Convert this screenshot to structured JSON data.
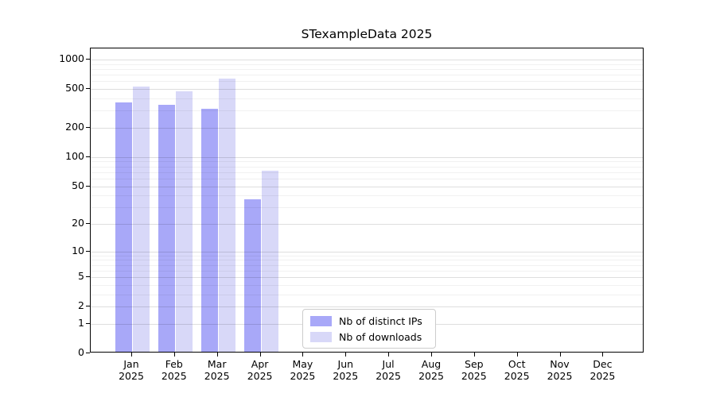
{
  "title": "STexampleData 2025",
  "chart_data": {
    "type": "bar",
    "title": "STexampleData 2025",
    "categories": [
      "Jan",
      "Feb",
      "Mar",
      "Apr",
      "May",
      "Jun",
      "Jul",
      "Aug",
      "Sep",
      "Oct",
      "Nov",
      "Dec"
    ],
    "x_year_label": "2025",
    "series": [
      {
        "name": "Nb of distinct IPs",
        "color": "#a8a8f8",
        "values": [
          350,
          330,
          300,
          35,
          0,
          0,
          0,
          0,
          0,
          0,
          0,
          0
        ]
      },
      {
        "name": "Nb of downloads",
        "color": "#d8d8f8",
        "values": [
          510,
          460,
          620,
          70,
          0,
          0,
          0,
          0,
          0,
          0,
          0,
          0
        ]
      }
    ],
    "yscale": "log1p",
    "yticks": [
      0,
      1,
      2,
      5,
      10,
      20,
      50,
      100,
      200,
      500,
      1000
    ],
    "yticks_minor": [
      3,
      4,
      6,
      7,
      8,
      9,
      30,
      40,
      60,
      70,
      80,
      90,
      300,
      400,
      600,
      700,
      800,
      900
    ],
    "ylim": [
      0,
      1300
    ],
    "xlabel": "",
    "ylabel": "",
    "grid": true,
    "legend_position": "lower-center",
    "colors": {
      "axis": "#000000",
      "background": "#ffffff"
    }
  }
}
